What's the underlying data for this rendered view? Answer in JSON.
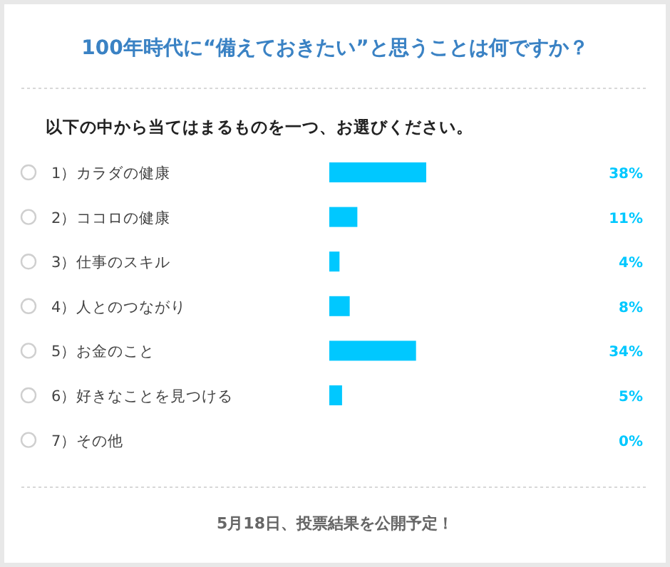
{
  "chart_data": {
    "type": "bar",
    "orientation": "horizontal",
    "title": "100年時代に“備えておきたい”と思うことは何ですか？",
    "subtitle": "以下の中から当てはまるものを一つ、お選びください。",
    "categories": [
      "1）カラダの健康",
      "2）ココロの健康",
      "3）仕事のスキル",
      "4）人とのつながり",
      "5）お金のこと",
      "6）好きなことを見つける",
      "7）その他"
    ],
    "values": [
      38,
      11,
      4,
      8,
      34,
      5,
      0
    ],
    "value_labels": [
      "38%",
      "11%",
      "4%",
      "8%",
      "34%",
      "5%",
      "0%"
    ],
    "color": "#00c8ff",
    "annotations": [
      "5月18日、投票結果を公開予定！"
    ]
  }
}
